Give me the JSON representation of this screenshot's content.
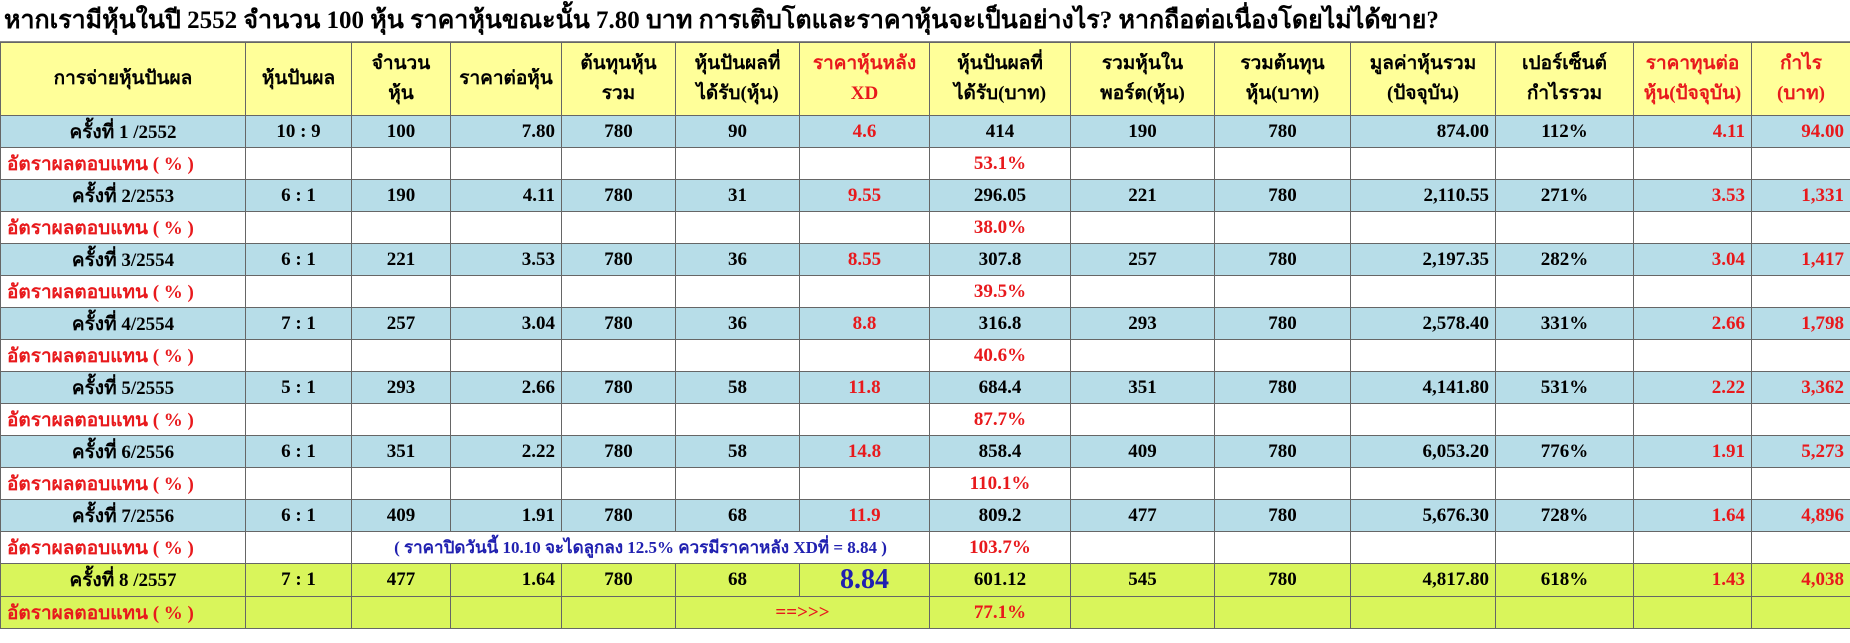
{
  "title": "หากเรามีหุ้นในปี 2552 จำนวน 100 หุ้น ราคาหุ้นขณะนั้น 7.80 บาท การเติบโตและราคาหุ้นจะเป็นอย่างไร? หากถือต่อเนื่องโดยไม่ได้ขาย?",
  "headers": [
    [
      "การจ่ายหุ้นปันผล"
    ],
    [
      "หุ้นปันผล"
    ],
    [
      "จำนวน",
      "หุ้น"
    ],
    [
      "ราคาต่อหุ้น"
    ],
    [
      "ต้นทุนหุ้น",
      "รวม"
    ],
    [
      "หุ้นปันผลที่",
      "ได้รับ(หุ้น)"
    ],
    [
      "ราคาหุ้นหลัง",
      "XD"
    ],
    [
      "หุ้นปันผลที่",
      "ได้รับ(บาท)"
    ],
    [
      "รวมหุ้นใน",
      "พอร์ต(หุ้น)"
    ],
    [
      "รวมต้นทุน",
      "หุ้น(บาท)"
    ],
    [
      "มูลค่าหุ้นรวม",
      "(ปัจจุบัน)"
    ],
    [
      "เปอร์เซ็นต์",
      "กำไรรวม"
    ],
    [
      "ราคาทุนต่อ",
      "หุ้น(ปัจจุบัน)"
    ],
    [
      "กำไร",
      "(บาท)"
    ]
  ],
  "rows": [
    {
      "cells": [
        "ครั้งที่ 1 /2552",
        "10 : 9",
        "100",
        "7.80",
        "780",
        "90",
        "4.6",
        "414",
        "190",
        "780",
        "874.00",
        "112%",
        "4.11",
        "94.00"
      ],
      "yield_label": "อัตราผลตอบแทน ( % )",
      "yield": "53.1%"
    },
    {
      "cells": [
        "ครั้งที่ 2/2553",
        "6 : 1",
        "190",
        "4.11",
        "780",
        "31",
        "9.55",
        "296.05",
        "221",
        "780",
        "2,110.55",
        "271%",
        "3.53",
        "1,331"
      ],
      "yield_label": "อัตราผลตอบแทน ( % )",
      "yield": "38.0%"
    },
    {
      "cells": [
        "ครั้งที่ 3/2554",
        "6 : 1",
        "221",
        "3.53",
        "780",
        "36",
        "8.55",
        "307.8",
        "257",
        "780",
        "2,197.35",
        "282%",
        "3.04",
        "1,417"
      ],
      "yield_label": "อัตราผลตอบแทน ( % )",
      "yield": "39.5%"
    },
    {
      "cells": [
        "ครั้งที่ 4/2554",
        "7 : 1",
        "257",
        "3.04",
        "780",
        "36",
        "8.8",
        "316.8",
        "293",
        "780",
        "2,578.40",
        "331%",
        "2.66",
        "1,798"
      ],
      "yield_label": "อัตราผลตอบแทน ( % )",
      "yield": "40.6%"
    },
    {
      "cells": [
        "ครั้งที่ 5/2555",
        "5 : 1",
        "293",
        "2.66",
        "780",
        "58",
        "11.8",
        "684.4",
        "351",
        "780",
        "4,141.80",
        "531%",
        "2.22",
        "3,362"
      ],
      "yield_label": "อัตราผลตอบแทน ( % )",
      "yield": "87.7%"
    },
    {
      "cells": [
        "ครั้งที่ 6/2556",
        "6 : 1",
        "351",
        "2.22",
        "780",
        "58",
        "14.8",
        "858.4",
        "409",
        "780",
        "6,053.20",
        "776%",
        "1.91",
        "5,273"
      ],
      "yield_label": "อัตราผลตอบแทน ( % )",
      "yield": "110.1%"
    },
    {
      "cells": [
        "ครั้งที่ 7/2556",
        "6 : 1",
        "409",
        "1.91",
        "780",
        "68",
        "11.9",
        "809.2",
        "477",
        "780",
        "5,676.30",
        "728%",
        "1.64",
        "4,896"
      ],
      "yield_label": "อัตราผลตอบแทน ( % )",
      "yield": "103.7%",
      "note": "( ราคาปิดวันนี้ 10.10 จะไดลูกลง  12.5% ควรมีราคาหลัง XDที่  = 8.84 )"
    },
    {
      "cells": [
        "ครั้งที่ 8 /2557",
        "7 : 1",
        "477",
        "1.64",
        "780",
        "68",
        "8.84",
        "601.12",
        "545",
        "780",
        "4,817.80",
        "618%",
        "1.43",
        "4,038"
      ],
      "yield_label": "อัตราผลตอบแทน ( % )",
      "yield": "77.1%",
      "arrow": "==>>>"
    }
  ]
}
